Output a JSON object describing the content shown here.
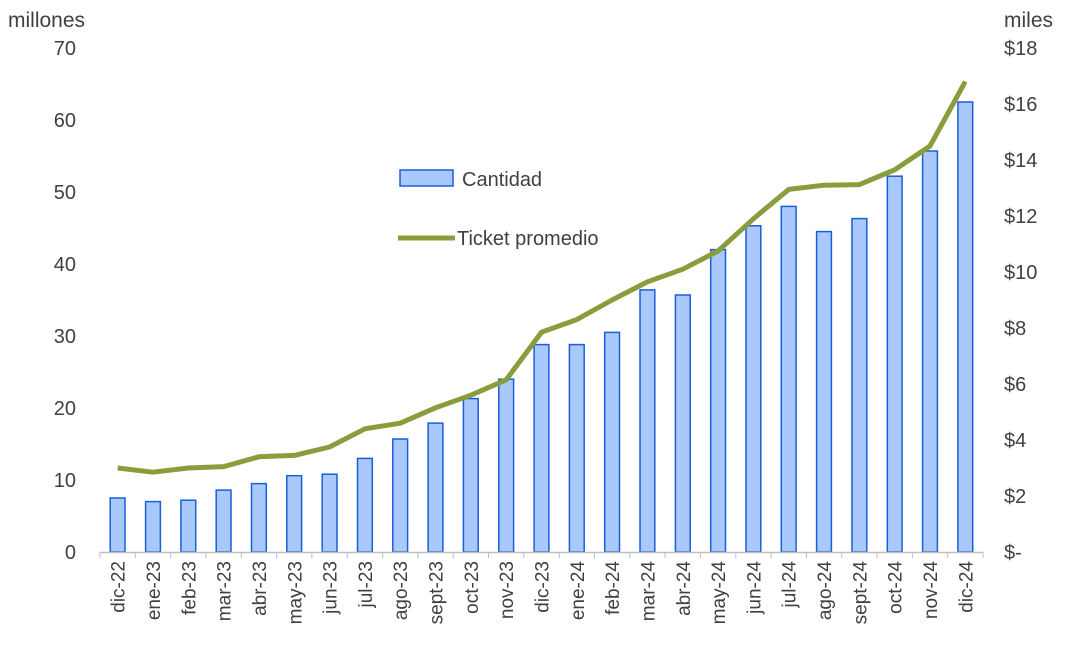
{
  "chart_data": {
    "type": "bar+line",
    "categories": [
      "dic-22",
      "ene-23",
      "feb-23",
      "mar-23",
      "abr-23",
      "may-23",
      "jun-23",
      "jul-23",
      "ago-23",
      "sept-23",
      "oct-23",
      "nov-23",
      "dic-23",
      "ene-24",
      "feb-24",
      "mar-24",
      "abr-24",
      "may-24",
      "jun-24",
      "jul-24",
      "ago-24",
      "sept-24",
      "oct-24",
      "nov-24",
      "dic-24"
    ],
    "series": [
      {
        "name": "Cantidad",
        "type": "bar",
        "axis": "left",
        "values": [
          7.5,
          7.0,
          7.2,
          8.6,
          9.5,
          10.6,
          10.8,
          13.0,
          15.7,
          17.9,
          21.3,
          24.0,
          28.8,
          28.8,
          30.5,
          36.4,
          35.7,
          42.0,
          45.3,
          48.0,
          44.5,
          46.3,
          52.2,
          55.7,
          62.5
        ]
      },
      {
        "name": "Ticket promedio",
        "type": "line",
        "axis": "right",
        "values": [
          3.0,
          2.85,
          3.0,
          3.05,
          3.4,
          3.45,
          3.75,
          4.4,
          4.6,
          5.15,
          5.6,
          6.15,
          7.85,
          8.3,
          9.0,
          9.65,
          10.1,
          10.75,
          11.9,
          12.95,
          13.1,
          13.12,
          13.65,
          14.5,
          16.8
        ]
      }
    ],
    "left_axis": {
      "unit_label": "millones",
      "ylim": [
        0,
        70
      ],
      "ticks": [
        "0",
        "10",
        "20",
        "30",
        "40",
        "50",
        "60",
        "70"
      ]
    },
    "right_axis": {
      "unit_label": "miles",
      "ylim": [
        0,
        18
      ],
      "ticks": [
        "$-",
        "$2",
        "$4",
        "$6",
        "$8",
        "$10",
        "$12",
        "$14",
        "$16",
        "$18"
      ]
    },
    "legend_position": "center-left",
    "grid": false,
    "colors": {
      "bar_fill": "#a9c8fb",
      "bar_stroke": "#1a5fd6",
      "line": "#8a9d3c",
      "text": "#404040",
      "axis": "#bfbfbf"
    }
  }
}
